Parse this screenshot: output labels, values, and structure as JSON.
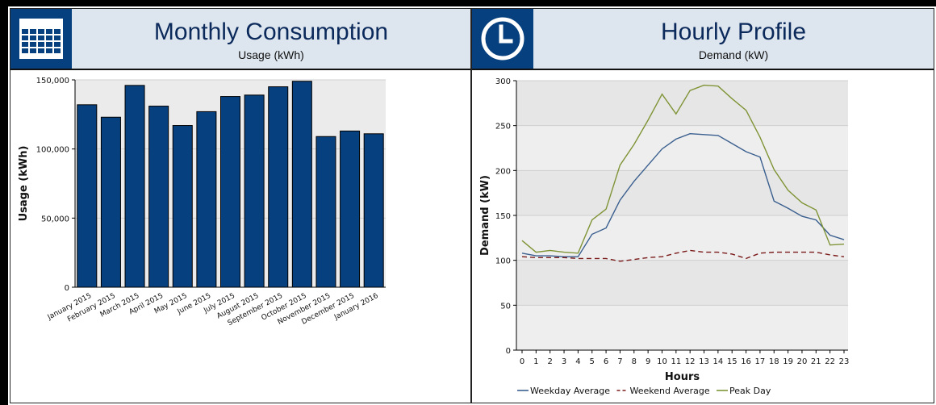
{
  "panels": {
    "monthly": {
      "title": "Monthly Consumption",
      "subtitle": "Usage (kWh)",
      "icon": "calendar-icon"
    },
    "hourly": {
      "title": "Hourly Profile",
      "subtitle": "Demand (kW)",
      "icon": "clock-icon"
    }
  },
  "chart_data": [
    {
      "type": "bar",
      "title": "Monthly Consumption",
      "subtitle": "Usage (kWh)",
      "xlabel": "",
      "ylabel": "Usage (kWh)",
      "ylim": [
        0,
        150000
      ],
      "yticks": [
        0,
        50000,
        100000,
        150000
      ],
      "ytick_labels": [
        "0",
        "50,000",
        "100,000",
        "150,000"
      ],
      "categories": [
        "January 2015",
        "February 2015",
        "March 2015",
        "April 2015",
        "May 2015",
        "June 2015",
        "July 2015",
        "August 2015",
        "September 2015",
        "October 2015",
        "November 2015",
        "December 2015",
        "January 2016"
      ],
      "values": [
        132000,
        123000,
        146000,
        131000,
        117000,
        127000,
        138000,
        139000,
        145000,
        149000,
        109000,
        113000,
        111000
      ],
      "bar_color": "#07407e",
      "grid": true
    },
    {
      "type": "line",
      "title": "Hourly Profile",
      "subtitle": "Demand (kW)",
      "xlabel": "Hours",
      "ylabel": "Demand (kW)",
      "ylim": [
        0,
        300
      ],
      "yticks": [
        0,
        50,
        100,
        150,
        200,
        250,
        300
      ],
      "ytick_labels": [
        "0",
        "50",
        "100",
        "150",
        "200",
        "250",
        "300"
      ],
      "x": [
        0,
        1,
        2,
        3,
        4,
        5,
        6,
        7,
        8,
        9,
        10,
        11,
        12,
        13,
        14,
        15,
        16,
        17,
        18,
        19,
        20,
        21,
        22,
        23
      ],
      "xtick_labels": [
        "0",
        "1",
        "2",
        "3",
        "4",
        "5",
        "6",
        "7",
        "8",
        "9",
        "10",
        "11",
        "12",
        "13",
        "14",
        "15",
        "16",
        "17",
        "18",
        "19",
        "20",
        "21",
        "22",
        "23"
      ],
      "series": [
        {
          "name": "Weekday Average",
          "color": "#3a5f8f",
          "dash": "solid",
          "values": [
            108,
            105,
            105,
            104,
            104,
            129,
            136,
            167,
            188,
            206,
            224,
            235,
            241,
            240,
            239,
            230,
            221,
            215,
            166,
            158,
            149,
            145,
            128,
            123
          ]
        },
        {
          "name": "Weekend Average",
          "color": "#7a1a1a",
          "dash": "dashed",
          "values": [
            104,
            103,
            103,
            103,
            102,
            102,
            102,
            99,
            101,
            103,
            104,
            108,
            111,
            109,
            109,
            107,
            102,
            108,
            109,
            109,
            109,
            109,
            106,
            104
          ]
        },
        {
          "name": "Peak Day",
          "color": "#7f9436",
          "dash": "solid",
          "values": [
            122,
            109,
            111,
            109,
            108,
            145,
            157,
            206,
            229,
            256,
            285,
            263,
            289,
            295,
            294,
            280,
            267,
            237,
            201,
            178,
            164,
            156,
            117,
            118
          ]
        }
      ],
      "legend": "bottom",
      "grid": true
    }
  ]
}
